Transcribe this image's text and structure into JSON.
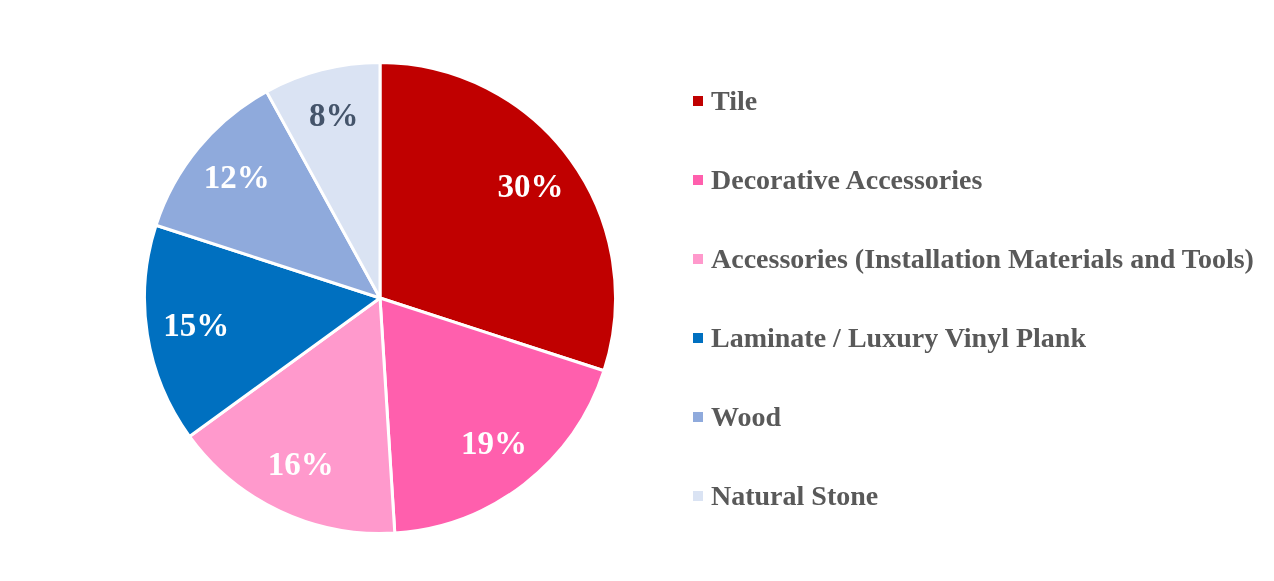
{
  "chart_data": {
    "type": "pie",
    "categories": [
      "Tile",
      "Decorative Accessories",
      "Accessories (Installation Materials and Tools)",
      "Laminate / Luxury Vinyl Plank",
      "Wood",
      "Natural Stone"
    ],
    "values": [
      30,
      19,
      16,
      15,
      12,
      8
    ],
    "colors": [
      "#c00000",
      "#ff5fad",
      "#ff99cc",
      "#0070c0",
      "#8faadc",
      "#dae3f3"
    ],
    "value_labels": [
      "30%",
      "19%",
      "16%",
      "15%",
      "12%",
      "8%"
    ],
    "legend": "right"
  }
}
